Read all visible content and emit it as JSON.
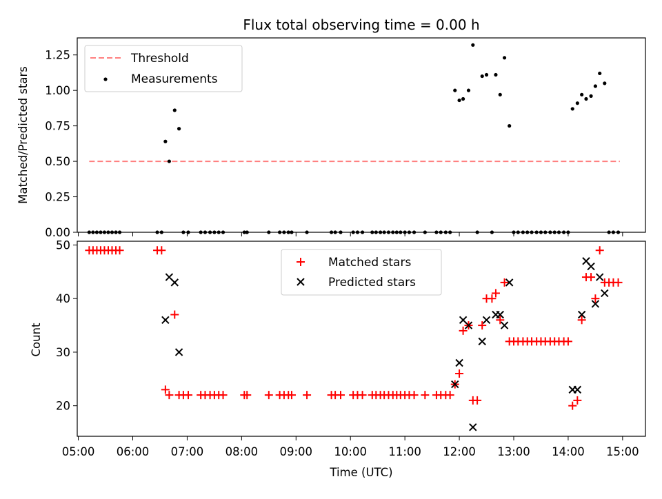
{
  "chart_data": [
    {
      "type": "scatter",
      "title": "Flux total observing time = 0.00 h",
      "xlabel": "",
      "ylabel": "Matched/Predicted stars",
      "ylim": [
        0,
        1.37
      ],
      "yticks": [
        "0.00",
        "0.25",
        "0.50",
        "0.75",
        "1.00",
        "1.25"
      ],
      "ytick_values": [
        0,
        0.25,
        0.5,
        0.75,
        1.0,
        1.25
      ],
      "legend": {
        "position": "top-left",
        "entries": [
          "Threshold",
          "Measurements"
        ]
      },
      "threshold": {
        "name": "Threshold",
        "y": 0.5,
        "x_start": 5.2,
        "x_end": 14.95,
        "color": "#ff7f7f",
        "style": "dashed"
      },
      "series": [
        {
          "name": "Measurements",
          "color": "#000000",
          "marker": "dot",
          "points": [
            [
              5.2,
              0
            ],
            [
              5.27,
              0
            ],
            [
              5.34,
              0
            ],
            [
              5.41,
              0
            ],
            [
              5.48,
              0
            ],
            [
              5.55,
              0
            ],
            [
              5.62,
              0
            ],
            [
              5.69,
              0
            ],
            [
              5.76,
              0
            ],
            [
              6.45,
              0
            ],
            [
              6.53,
              0
            ],
            [
              6.6,
              0.64
            ],
            [
              6.67,
              0.5
            ],
            [
              6.77,
              0.86
            ],
            [
              6.85,
              0.73
            ],
            [
              6.93,
              0
            ],
            [
              7.02,
              0
            ],
            [
              7.25,
              0
            ],
            [
              7.33,
              0
            ],
            [
              7.42,
              0
            ],
            [
              7.5,
              0
            ],
            [
              7.58,
              0
            ],
            [
              7.66,
              0
            ],
            [
              8.05,
              0
            ],
            [
              8.1,
              0
            ],
            [
              8.5,
              0
            ],
            [
              8.7,
              0
            ],
            [
              8.78,
              0
            ],
            [
              8.86,
              0
            ],
            [
              8.92,
              0
            ],
            [
              9.2,
              0
            ],
            [
              9.65,
              0
            ],
            [
              9.72,
              0
            ],
            [
              9.82,
              0
            ],
            [
              10.05,
              0
            ],
            [
              10.13,
              0
            ],
            [
              10.22,
              0
            ],
            [
              10.4,
              0
            ],
            [
              10.47,
              0
            ],
            [
              10.55,
              0
            ],
            [
              10.62,
              0
            ],
            [
              10.7,
              0
            ],
            [
              10.78,
              0
            ],
            [
              10.85,
              0
            ],
            [
              10.92,
              0
            ],
            [
              11.0,
              0
            ],
            [
              11.08,
              0
            ],
            [
              11.17,
              0
            ],
            [
              11.37,
              0
            ],
            [
              11.58,
              0
            ],
            [
              11.66,
              0
            ],
            [
              11.75,
              0
            ],
            [
              11.83,
              0
            ],
            [
              11.92,
              1.0
            ],
            [
              12.0,
              0.93
            ],
            [
              12.07,
              0.94
            ],
            [
              12.17,
              1.0
            ],
            [
              12.25,
              1.32
            ],
            [
              12.33,
              0
            ],
            [
              12.42,
              1.1
            ],
            [
              12.5,
              1.11
            ],
            [
              12.6,
              0
            ],
            [
              12.67,
              1.11
            ],
            [
              12.75,
              0.97
            ],
            [
              12.83,
              1.23
            ],
            [
              12.92,
              0.75
            ],
            [
              13.0,
              0
            ],
            [
              13.08,
              0
            ],
            [
              13.17,
              0
            ],
            [
              13.25,
              0
            ],
            [
              13.33,
              0
            ],
            [
              13.42,
              0
            ],
            [
              13.5,
              0
            ],
            [
              13.58,
              0
            ],
            [
              13.67,
              0
            ],
            [
              13.75,
              0
            ],
            [
              13.83,
              0
            ],
            [
              13.92,
              0
            ],
            [
              14.0,
              0
            ],
            [
              14.08,
              0.87
            ],
            [
              14.17,
              0.91
            ],
            [
              14.25,
              0.97
            ],
            [
              14.33,
              0.94
            ],
            [
              14.42,
              0.96
            ],
            [
              14.5,
              1.03
            ],
            [
              14.58,
              1.12
            ],
            [
              14.67,
              1.05
            ],
            [
              14.75,
              0
            ],
            [
              14.83,
              0
            ],
            [
              14.92,
              0
            ]
          ]
        }
      ]
    },
    {
      "type": "scatter",
      "title": "",
      "xlabel": "Time (UTC)",
      "ylabel": "Count",
      "ylim": [
        14.3,
        50.7
      ],
      "xlim": [
        4.98,
        15.42
      ],
      "xticks": [
        "05:00",
        "06:00",
        "07:00",
        "08:00",
        "09:00",
        "10:00",
        "11:00",
        "12:00",
        "13:00",
        "14:00",
        "15:00"
      ],
      "xtick_values": [
        5,
        6,
        7,
        8,
        9,
        10,
        11,
        12,
        13,
        14,
        15
      ],
      "yticks": [
        "20",
        "30",
        "40",
        "50"
      ],
      "ytick_values": [
        20,
        30,
        40,
        50
      ],
      "legend": {
        "position": "top-center",
        "entries": [
          "Matched stars",
          "Predicted stars"
        ]
      },
      "series": [
        {
          "name": "Matched stars",
          "color": "#ff0000",
          "marker": "plus",
          "points": [
            [
              5.2,
              49
            ],
            [
              5.27,
              49
            ],
            [
              5.34,
              49
            ],
            [
              5.41,
              49
            ],
            [
              5.48,
              49
            ],
            [
              5.55,
              49
            ],
            [
              5.62,
              49
            ],
            [
              5.69,
              49
            ],
            [
              5.76,
              49
            ],
            [
              6.45,
              49
            ],
            [
              6.53,
              49
            ],
            [
              6.6,
              23
            ],
            [
              6.67,
              22
            ],
            [
              6.77,
              37
            ],
            [
              6.85,
              22
            ],
            [
              6.93,
              22
            ],
            [
              7.02,
              22
            ],
            [
              7.25,
              22
            ],
            [
              7.33,
              22
            ],
            [
              7.42,
              22
            ],
            [
              7.5,
              22
            ],
            [
              7.58,
              22
            ],
            [
              7.66,
              22
            ],
            [
              8.05,
              22
            ],
            [
              8.1,
              22
            ],
            [
              8.5,
              22
            ],
            [
              8.7,
              22
            ],
            [
              8.78,
              22
            ],
            [
              8.86,
              22
            ],
            [
              8.92,
              22
            ],
            [
              9.2,
              22
            ],
            [
              9.65,
              22
            ],
            [
              9.72,
              22
            ],
            [
              9.82,
              22
            ],
            [
              10.05,
              22
            ],
            [
              10.13,
              22
            ],
            [
              10.22,
              22
            ],
            [
              10.4,
              22
            ],
            [
              10.47,
              22
            ],
            [
              10.55,
              22
            ],
            [
              10.62,
              22
            ],
            [
              10.7,
              22
            ],
            [
              10.78,
              22
            ],
            [
              10.85,
              22
            ],
            [
              10.92,
              22
            ],
            [
              11.0,
              22
            ],
            [
              11.08,
              22
            ],
            [
              11.17,
              22
            ],
            [
              11.37,
              22
            ],
            [
              11.58,
              22
            ],
            [
              11.66,
              22
            ],
            [
              11.75,
              22
            ],
            [
              11.83,
              22
            ],
            [
              11.92,
              24
            ],
            [
              12.0,
              26
            ],
            [
              12.07,
              34
            ],
            [
              12.17,
              35
            ],
            [
              12.25,
              21
            ],
            [
              12.33,
              21
            ],
            [
              12.42,
              35
            ],
            [
              12.5,
              40
            ],
            [
              12.6,
              40
            ],
            [
              12.67,
              41
            ],
            [
              12.75,
              36
            ],
            [
              12.83,
              43
            ],
            [
              12.92,
              32
            ],
            [
              13.0,
              32
            ],
            [
              13.08,
              32
            ],
            [
              13.17,
              32
            ],
            [
              13.25,
              32
            ],
            [
              13.33,
              32
            ],
            [
              13.42,
              32
            ],
            [
              13.5,
              32
            ],
            [
              13.58,
              32
            ],
            [
              13.67,
              32
            ],
            [
              13.75,
              32
            ],
            [
              13.83,
              32
            ],
            [
              13.92,
              32
            ],
            [
              14.0,
              32
            ],
            [
              14.08,
              20
            ],
            [
              14.17,
              21
            ],
            [
              14.25,
              36
            ],
            [
              14.33,
              44
            ],
            [
              14.42,
              44
            ],
            [
              14.5,
              40
            ],
            [
              14.58,
              49
            ],
            [
              14.67,
              43
            ],
            [
              14.75,
              43
            ],
            [
              14.83,
              43
            ],
            [
              14.92,
              43
            ]
          ]
        },
        {
          "name": "Predicted stars",
          "color": "#000000",
          "marker": "x",
          "points": [
            [
              6.6,
              36
            ],
            [
              6.67,
              44
            ],
            [
              6.77,
              43
            ],
            [
              6.85,
              30
            ],
            [
              11.92,
              24
            ],
            [
              12.0,
              28
            ],
            [
              12.07,
              36
            ],
            [
              12.17,
              35
            ],
            [
              12.25,
              16
            ],
            [
              12.42,
              32
            ],
            [
              12.5,
              36
            ],
            [
              12.67,
              37
            ],
            [
              12.75,
              37
            ],
            [
              12.83,
              35
            ],
            [
              12.92,
              43
            ],
            [
              14.08,
              23
            ],
            [
              14.17,
              23
            ],
            [
              14.25,
              37
            ],
            [
              14.33,
              47
            ],
            [
              14.42,
              46
            ],
            [
              14.5,
              39
            ],
            [
              14.58,
              44
            ],
            [
              14.67,
              41
            ]
          ]
        }
      ]
    }
  ]
}
